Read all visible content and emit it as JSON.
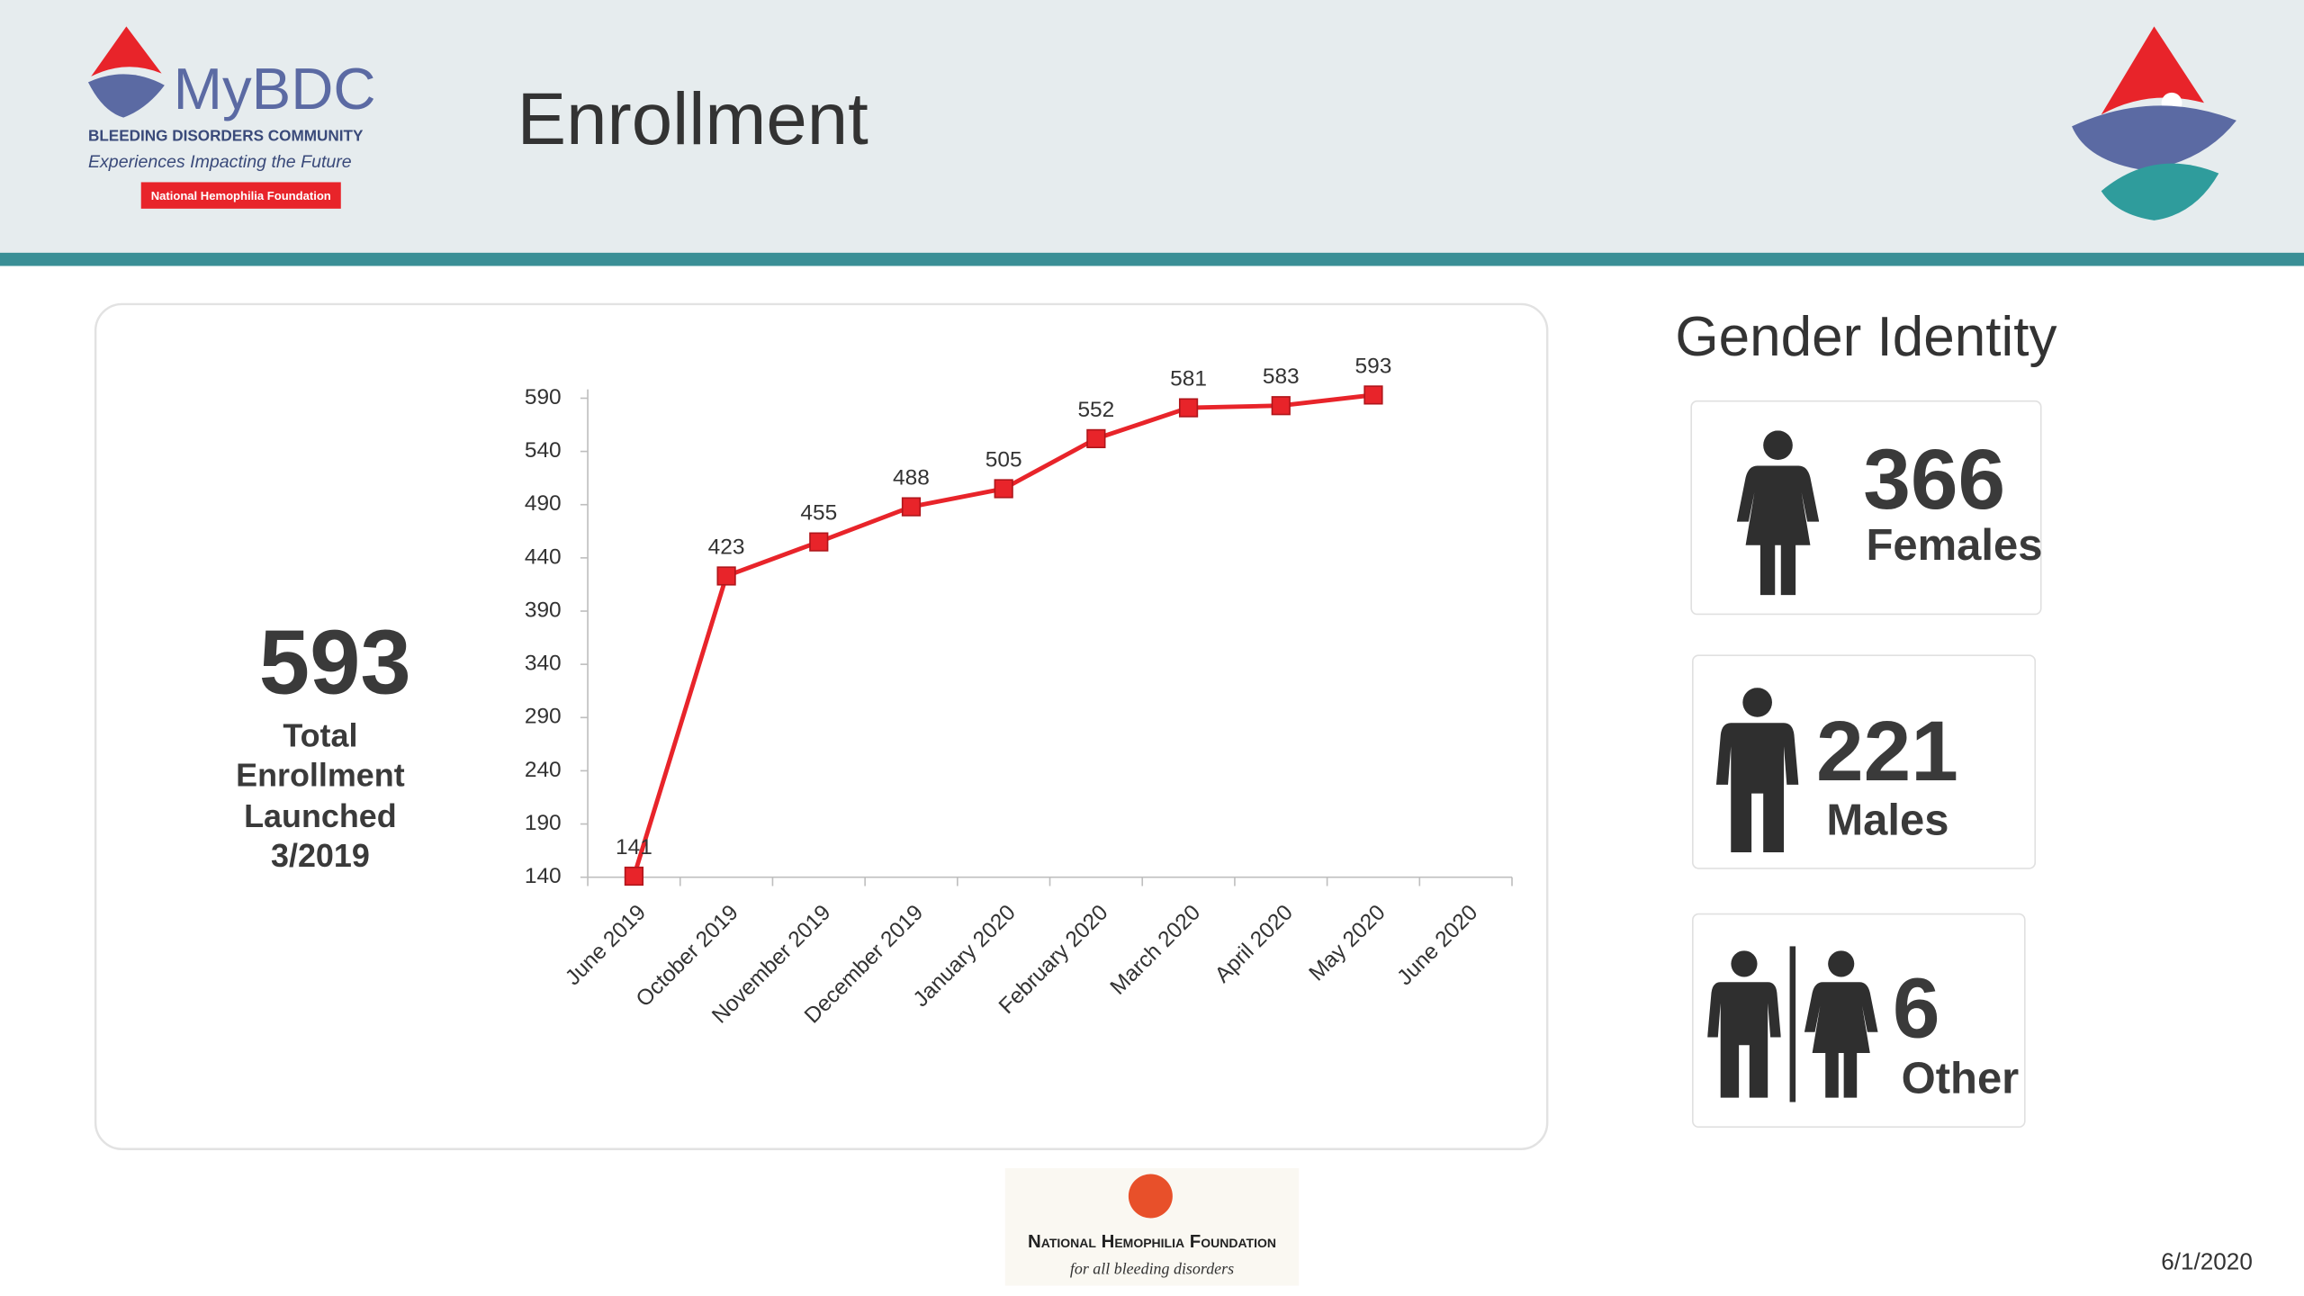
{
  "header": {
    "title": "Enrollment",
    "logo": {
      "name": "MyBDC",
      "community": "BLEEDING DISORDERS COMMUNITY",
      "tagline": "Experiences Impacting the Future",
      "badge": "National Hemophilia Foundation"
    }
  },
  "summary": {
    "total": "593",
    "lines": [
      "Total",
      "Enrollment",
      "Launched",
      "3/2019"
    ]
  },
  "chart_data": {
    "type": "line",
    "color": "#e8242a",
    "categories": [
      "June 2019",
      "October 2019",
      "November 2019",
      "December 2019",
      "January 2020",
      "February 2020",
      "March 2020",
      "April 2020",
      "May 2020",
      "June 2020"
    ],
    "values": [
      141,
      423,
      455,
      488,
      505,
      552,
      581,
      583,
      593,
      null
    ],
    "ylim": [
      140,
      590
    ],
    "yticks": [
      140,
      190,
      240,
      290,
      340,
      390,
      440,
      490,
      540,
      590
    ]
  },
  "gender": {
    "title": "Gender Identity",
    "cards": [
      {
        "count": "366",
        "label": "Females"
      },
      {
        "count": "221",
        "label": "Males"
      },
      {
        "count": "6",
        "label": "Other"
      }
    ]
  },
  "footer": {
    "org": "National Hemophilia Foundation",
    "motto": "for all bleeding disorders",
    "date": "6/1/2020"
  }
}
